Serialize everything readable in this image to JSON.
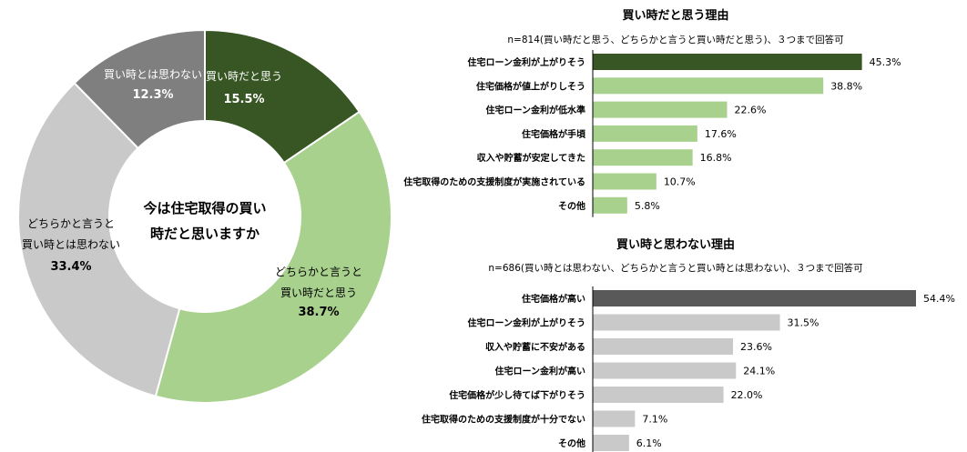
{
  "chart_data": [
    {
      "type": "pie",
      "center_label": [
        "今は住宅取得の買い",
        "時だと思いますか"
      ],
      "slices": [
        {
          "label": [
            "買い時だと思う"
          ],
          "value": 15.5,
          "value_label": "15.5%",
          "color": "#375623",
          "text_color": "#ffffff"
        },
        {
          "label": [
            "どちらかと言うと",
            "買い時だと思う"
          ],
          "value": 38.7,
          "value_label": "38.7%",
          "color": "#a9d18e",
          "text_color": "#000000"
        },
        {
          "label": [
            "どちらかと言うと",
            "買い時とは思わない"
          ],
          "value": 33.4,
          "value_label": "33.4%",
          "color": "#c9c9c9",
          "text_color": "#000000"
        },
        {
          "label": [
            "買い時とは思わない"
          ],
          "value": 12.3,
          "value_label": "12.3%",
          "color": "#7f7f7f",
          "text_color": "#ffffff"
        }
      ]
    },
    {
      "type": "bar",
      "orientation": "horizontal",
      "title": "買い時だと思う理由",
      "subtitle": "n=814(買い時だと思う、どちらかと言うと買い時だと思う)、３つまで回答可",
      "categories": [
        "住宅ローン金利が上がりそう",
        "住宅価格が値上がりしそう",
        "住宅ローン金利が低水準",
        "住宅価格が手頃",
        "収入や貯蓄が安定してきた",
        "住宅取得のための支援制度が実施されている",
        "その他"
      ],
      "values": [
        45.3,
        38.8,
        22.6,
        17.6,
        16.8,
        10.7,
        5.8
      ],
      "value_labels": [
        "45.3%",
        "38.8%",
        "22.6%",
        "17.6%",
        "16.8%",
        "10.7%",
        "5.8%"
      ],
      "colors": [
        "#375623",
        "#a9d18e",
        "#a9d18e",
        "#a9d18e",
        "#a9d18e",
        "#a9d18e",
        "#a9d18e"
      ],
      "xlim": [
        0,
        54.4
      ]
    },
    {
      "type": "bar",
      "orientation": "horizontal",
      "title": "買い時と思わない理由",
      "subtitle": "n=686(買い時とは思わない、どちらかと言うと買い時とは思わない)、３つまで回答可",
      "categories": [
        "住宅価格が高い",
        "住宅ローン金利が上がりそう",
        "収入や貯蓄に不安がある",
        "住宅ローン金利が高い",
        "住宅価格が少し待てば下がりそう",
        "住宅取得のための支援制度が十分でない",
        "その他"
      ],
      "values": [
        54.4,
        31.5,
        23.6,
        24.1,
        22.0,
        7.1,
        6.1
      ],
      "value_labels": [
        "54.4%",
        "31.5%",
        "23.6%",
        "24.1%",
        "22.0%",
        "7.1%",
        "6.1%"
      ],
      "colors": [
        "#595959",
        "#c9c9c9",
        "#c9c9c9",
        "#c9c9c9",
        "#c9c9c9",
        "#c9c9c9",
        "#c9c9c9"
      ],
      "xlim": [
        0,
        54.4
      ]
    }
  ]
}
